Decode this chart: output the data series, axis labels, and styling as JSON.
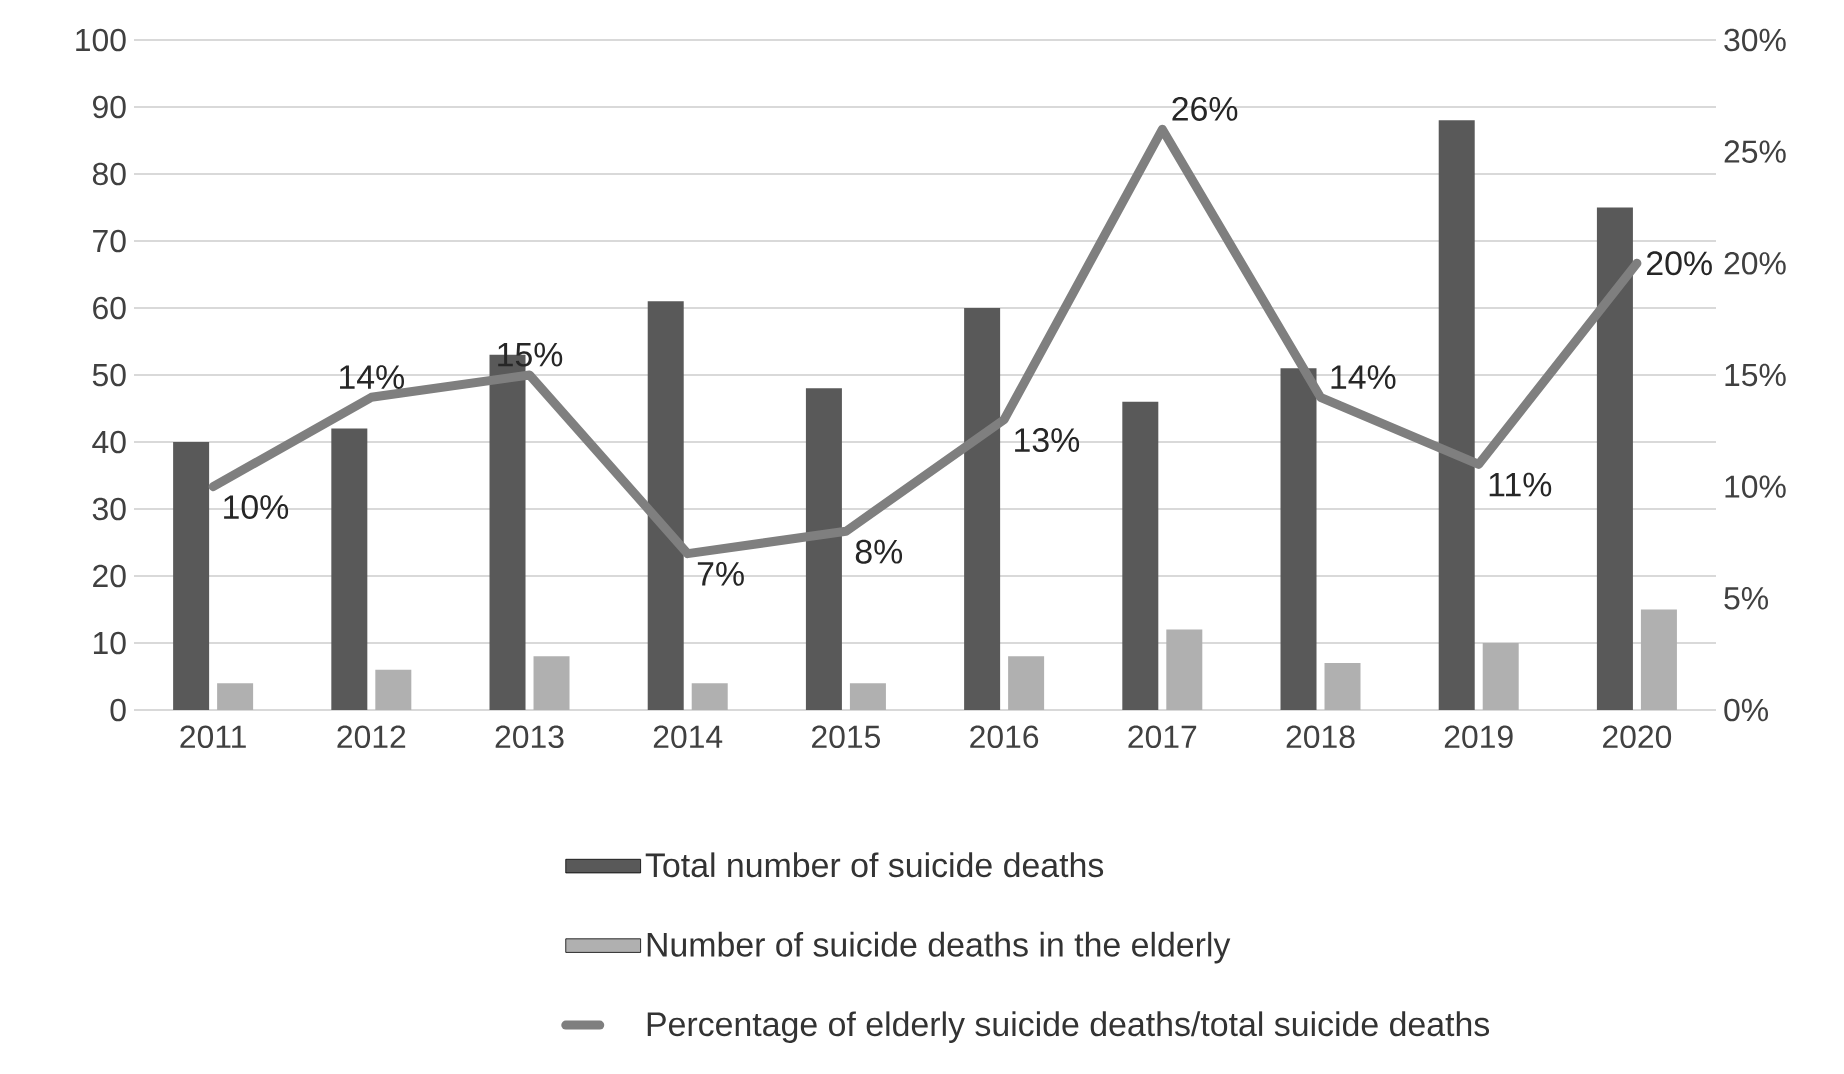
{
  "chart_data": {
    "type": "bar",
    "categories": [
      "2011",
      "2012",
      "2013",
      "2014",
      "2015",
      "2016",
      "2017",
      "2018",
      "2019",
      "2020"
    ],
    "series": [
      {
        "name": "Total number of suicide deaths",
        "color": "#595959",
        "values": [
          40,
          42,
          53,
          61,
          48,
          60,
          46,
          51,
          88,
          75
        ]
      },
      {
        "name": "Number of suicide deaths in the elderly",
        "color": "#b0b0b0",
        "values": [
          4,
          6,
          8,
          4,
          4,
          8,
          12,
          7,
          10,
          15
        ]
      },
      {
        "name": "Percentage of elderly suicide deaths/total suicide deaths",
        "color": "#7f7f7f",
        "type": "line",
        "axis": "y2",
        "values": [
          10,
          14,
          15,
          7,
          8,
          13,
          26,
          14,
          11,
          20
        ],
        "value_labels": [
          "10%",
          "14%",
          "15%",
          "7%",
          "8%",
          "13%",
          "26%",
          "14%",
          "11%",
          "20%"
        ]
      }
    ],
    "ylim": [
      0,
      100
    ],
    "yticks": [
      0,
      10,
      20,
      30,
      40,
      50,
      60,
      70,
      80,
      90,
      100
    ],
    "y2lim": [
      0,
      30
    ],
    "y2ticks": [
      {
        "value": 0,
        "label": "0%"
      },
      {
        "value": 5,
        "label": "5%"
      },
      {
        "value": 10,
        "label": "10%"
      },
      {
        "value": 15,
        "label": "15%"
      },
      {
        "value": 20,
        "label": "20%"
      },
      {
        "value": 25,
        "label": "25%"
      },
      {
        "value": 30,
        "label": "30%"
      }
    ],
    "grid": "y",
    "legend": "bottom"
  }
}
